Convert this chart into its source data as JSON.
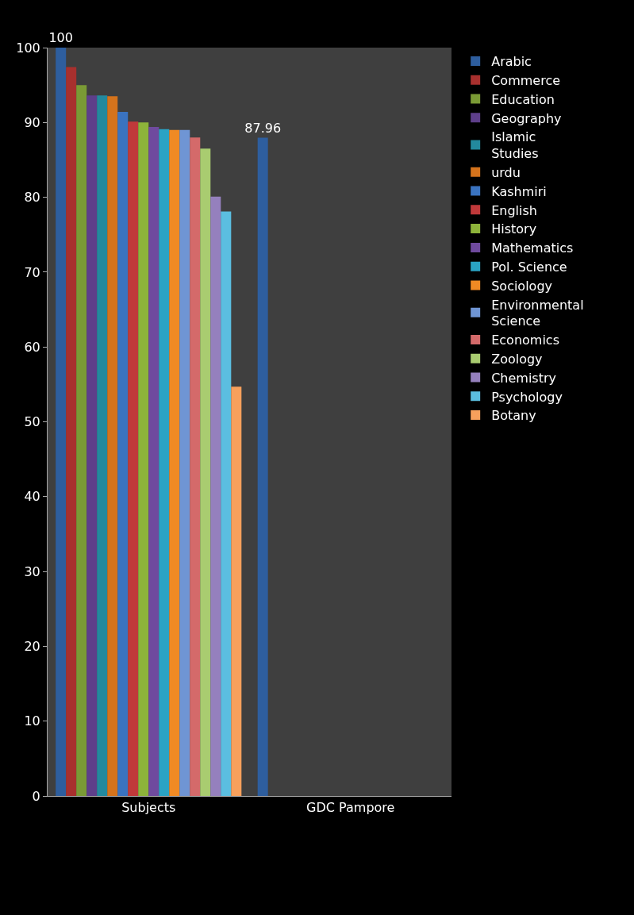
{
  "chart_data": {
    "type": "bar",
    "categories": [
      "Subjects",
      "GDC Pampore"
    ],
    "series": [
      {
        "name": "Arabic",
        "color": "#2e5e9e",
        "values": [
          100,
          87.96
        ],
        "value_labels": [
          "100",
          "87.96"
        ]
      },
      {
        "name": "Commerce",
        "color": "#a8302e",
        "values": [
          97.4,
          null
        ]
      },
      {
        "name": "Education",
        "color": "#7a9a35",
        "values": [
          95,
          null
        ]
      },
      {
        "name": "Geography",
        "color": "#5e3f8a",
        "values": [
          93.6,
          null
        ]
      },
      {
        "name": "Islamic Studies",
        "color": "#23899e",
        "values": [
          93.6,
          null
        ]
      },
      {
        "name": "urdu",
        "color": "#d4731c",
        "values": [
          93.5,
          null
        ]
      },
      {
        "name": "Kashmiri",
        "color": "#3a73c0",
        "values": [
          91.4,
          null
        ]
      },
      {
        "name": "English",
        "color": "#c0393a",
        "values": [
          90.1,
          null
        ]
      },
      {
        "name": "History",
        "color": "#8db33a",
        "values": [
          90,
          null
        ]
      },
      {
        "name": "Mathematics",
        "color": "#6f4a9e",
        "values": [
          89.4,
          null
        ]
      },
      {
        "name": "Pol. Science",
        "color": "#2aa3c4",
        "values": [
          89.1,
          null
        ]
      },
      {
        "name": "Sociology",
        "color": "#f08a24",
        "values": [
          89,
          null
        ]
      },
      {
        "name": "Environmental Science",
        "color": "#6f95d4",
        "values": [
          89,
          null
        ]
      },
      {
        "name": "Economics",
        "color": "#d46a6a",
        "values": [
          88,
          null
        ]
      },
      {
        "name": "Zoology",
        "color": "#a9cc70",
        "values": [
          86.5,
          null
        ]
      },
      {
        "name": "Chemistry",
        "color": "#9580bd",
        "values": [
          80.1,
          null
        ]
      },
      {
        "name": "Psychology",
        "color": "#5bbee0",
        "values": [
          78.1,
          null
        ]
      },
      {
        "name": "Botany",
        "color": "#f7a05c",
        "values": [
          54.7,
          null
        ]
      }
    ],
    "ylim": [
      0,
      100
    ],
    "yticks": [
      0,
      10,
      20,
      30,
      40,
      50,
      60,
      70,
      80,
      90,
      100
    ],
    "grid": false,
    "legend": "right"
  }
}
